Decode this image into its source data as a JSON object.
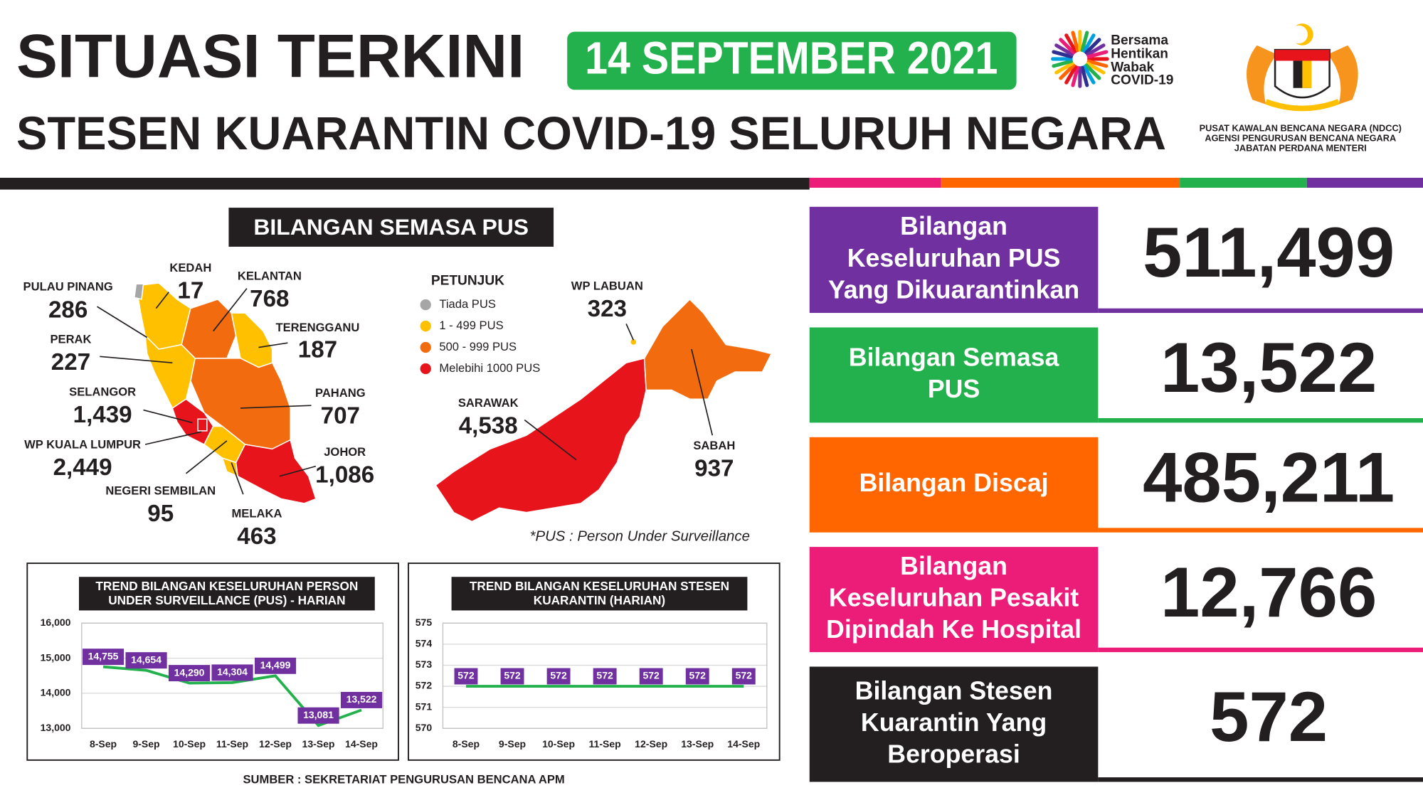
{
  "header": {
    "title": "SITUASI TERKINI",
    "date": "14 SEPTEMBER 2021",
    "subtitle": "STESEN KUARANTIN COVID-19 SELURUH NEGARA",
    "campaign": [
      "Bersama",
      "Hentikan",
      "Wabak",
      "COVID-19"
    ],
    "agency": [
      "PUSAT KAWALAN BENCANA NEGARA (NDCC)",
      "AGENSI PENGURUSAN BENCANA NEGARA",
      "JABATAN PERDANA MENTERI"
    ]
  },
  "map": {
    "title": "BILANGAN SEMASA PUS",
    "legend_title": "PETUNJUK",
    "legend": [
      {
        "label": "Tiada PUS",
        "color": "#a6a6a6"
      },
      {
        "label": "1 - 499 PUS",
        "color": "#ffc000"
      },
      {
        "label": "500 - 999 PUS",
        "color": "#f26b0f"
      },
      {
        "label": "Melebihi 1000 PUS",
        "color": "#e8141c"
      }
    ],
    "states": [
      {
        "name": "PULAU PINANG",
        "value": "286"
      },
      {
        "name": "KEDAH",
        "value": "17"
      },
      {
        "name": "KELANTAN",
        "value": "768"
      },
      {
        "name": "TERENGGANU",
        "value": "187"
      },
      {
        "name": "PERAK",
        "value": "227"
      },
      {
        "name": "SELANGOR",
        "value": "1,439"
      },
      {
        "name": "PAHANG",
        "value": "707"
      },
      {
        "name": "WP KUALA LUMPUR",
        "value": "2,449"
      },
      {
        "name": "JOHOR",
        "value": "1,086"
      },
      {
        "name": "NEGERI SEMBILAN",
        "value": "95"
      },
      {
        "name": "MELAKA",
        "value": "463"
      },
      {
        "name": "WP LABUAN",
        "value": "323"
      },
      {
        "name": "SARAWAK",
        "value": "4,538"
      },
      {
        "name": "SABAH",
        "value": "937"
      }
    ],
    "note": "*PUS : Person Under Surveillance"
  },
  "stats": [
    {
      "label": [
        "Bilangan",
        "Keseluruhan PUS",
        "Yang Dikuarantinkan"
      ],
      "value": "511,499",
      "color": "#7030a0"
    },
    {
      "label": [
        "Bilangan Semasa",
        "PUS"
      ],
      "value": "13,522",
      "color": "#22b14c"
    },
    {
      "label": [
        "Bilangan Discaj"
      ],
      "value": "485,211",
      "color": "#ff6600"
    },
    {
      "label": [
        "Bilangan",
        "Keseluruhan Pesakit",
        "Dipindah Ke Hospital"
      ],
      "value": "12,766",
      "color": "#ec1c79"
    },
    {
      "label": [
        "Bilangan Stesen",
        "Kuarantin Yang",
        "Beroperasi"
      ],
      "value": "572",
      "color": "#231f20"
    }
  ],
  "source": "SUMBER : SEKRETARIAT PENGURUSAN BENCANA APM",
  "chart_data": [
    {
      "type": "line",
      "title": [
        "TREND BILANGAN KESELURUHAN PERSON",
        "UNDER SURVEILLANCE (PUS) - HARIAN"
      ],
      "categories": [
        "8-Sep",
        "9-Sep",
        "10-Sep",
        "11-Sep",
        "12-Sep",
        "13-Sep",
        "14-Sep"
      ],
      "values": [
        14755,
        14654,
        14290,
        14304,
        14499,
        13081,
        13522
      ],
      "value_labels": [
        "14,755",
        "14,654",
        "14,290",
        "14,304",
        "14,499",
        "13,081",
        "13,522"
      ],
      "color": "#22b14c",
      "label_color": "#7030a0",
      "grid": true,
      "ylim": [
        13000,
        16000
      ],
      "yticks": [
        {
          "value": 13000,
          "label": "13,000"
        },
        {
          "value": 14000,
          "label": "14,000"
        },
        {
          "value": 15000,
          "label": "15,000"
        },
        {
          "value": 16000,
          "label": "16,000"
        }
      ]
    },
    {
      "type": "line",
      "title": [
        "TREND BILANGAN KESELURUHAN STESEN",
        "KUARANTIN (HARIAN)"
      ],
      "categories": [
        "8-Sep",
        "9-Sep",
        "10-Sep",
        "11-Sep",
        "12-Sep",
        "13-Sep",
        "14-Sep"
      ],
      "values": [
        572,
        572,
        572,
        572,
        572,
        572,
        572
      ],
      "color": "#22b14c",
      "label_color": "#7030a0",
      "grid": true,
      "ylim": [
        570,
        575
      ],
      "yticks": [
        570,
        571,
        572,
        573,
        574,
        575
      ]
    }
  ]
}
